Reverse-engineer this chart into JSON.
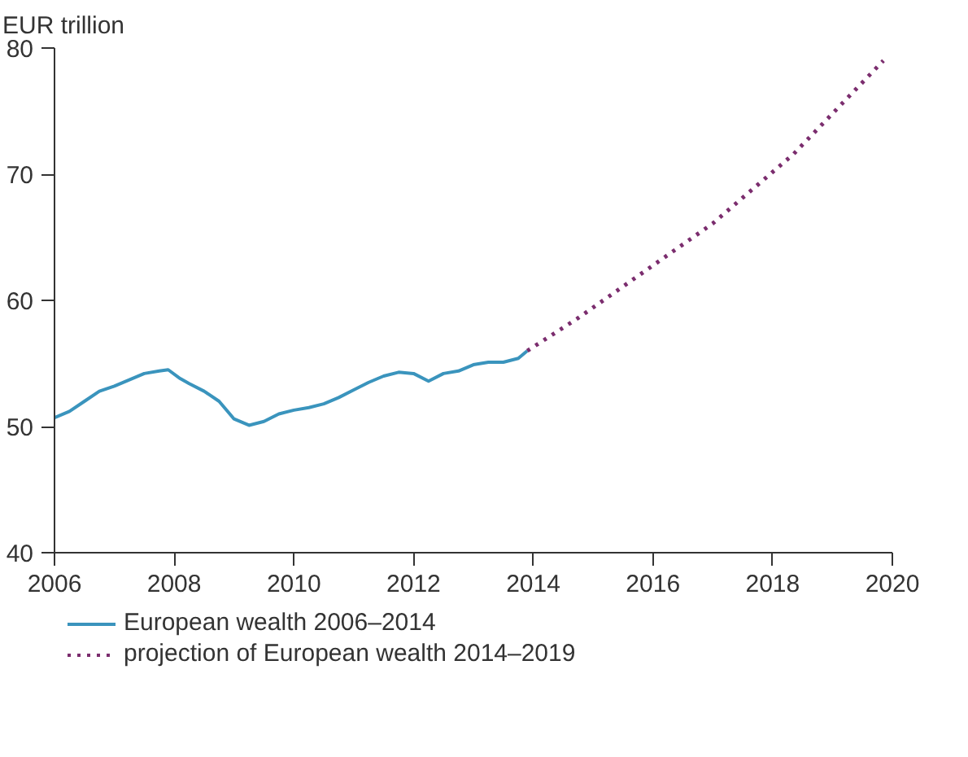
{
  "chart_data": {
    "type": "line",
    "ylabel": "EUR trillion",
    "xlim": [
      2006,
      2020
    ],
    "ylim": [
      40,
      80
    ],
    "xticks": [
      2006,
      2008,
      2010,
      2012,
      2014,
      2016,
      2018,
      2020
    ],
    "yticks": [
      40,
      50,
      60,
      70,
      80
    ],
    "grid": false,
    "legend": "bottom",
    "marker": "none",
    "series": [
      {
        "name": "European wealth 2006–2014",
        "color": "#3a94bd",
        "line_style": "solid",
        "x": [
          2006.0,
          2006.25,
          2006.5,
          2006.75,
          2007.0,
          2007.25,
          2007.5,
          2007.75,
          2007.9,
          2008.1,
          2008.25,
          2008.5,
          2008.75,
          2009.0,
          2009.25,
          2009.5,
          2009.75,
          2010.0,
          2010.25,
          2010.5,
          2010.75,
          2011.0,
          2011.25,
          2011.5,
          2011.75,
          2012.0,
          2012.25,
          2012.5,
          2012.75,
          2013.0,
          2013.25,
          2013.5,
          2013.75,
          2013.9
        ],
        "values": [
          50.7,
          51.2,
          52.0,
          52.8,
          53.2,
          53.7,
          54.2,
          54.4,
          54.5,
          53.8,
          53.4,
          52.8,
          52.0,
          50.6,
          50.1,
          50.4,
          51.0,
          51.3,
          51.5,
          51.8,
          52.3,
          52.9,
          53.5,
          54.0,
          54.3,
          54.2,
          53.6,
          54.2,
          54.4,
          54.9,
          55.1,
          55.1,
          55.4,
          56.0
        ]
      },
      {
        "name": "projection of European wealth 2014–2019",
        "color": "#7b2d6e",
        "line_style": "dotted",
        "x": [
          2013.9,
          2014.75,
          2015.65,
          2017.0,
          2018.35,
          2019.85
        ],
        "values": [
          56.0,
          58.6,
          61.6,
          66.1,
          71.6,
          79.0
        ]
      }
    ]
  }
}
